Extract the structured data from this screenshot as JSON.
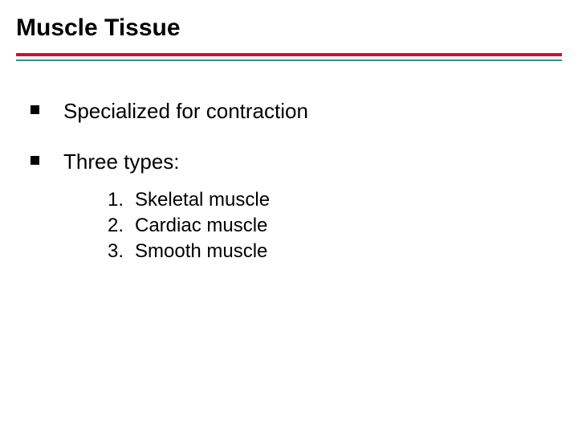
{
  "title": "Muscle Tissue",
  "rules": {
    "red_color": "#d0112b",
    "teal_color": "#3a8a9e"
  },
  "bullets": [
    {
      "text": "Specialized for contraction"
    },
    {
      "text": "Three types:"
    }
  ],
  "numbered": [
    {
      "n": "1.",
      "text": "Skeletal muscle"
    },
    {
      "n": "2.",
      "text": "Cardiac muscle"
    },
    {
      "n": "3.",
      "text": "Smooth muscle"
    }
  ],
  "style": {
    "title_fontsize": 30,
    "bullet_fontsize": 26,
    "num_fontsize": 24,
    "background": "#ffffff",
    "text_color": "#000000"
  }
}
